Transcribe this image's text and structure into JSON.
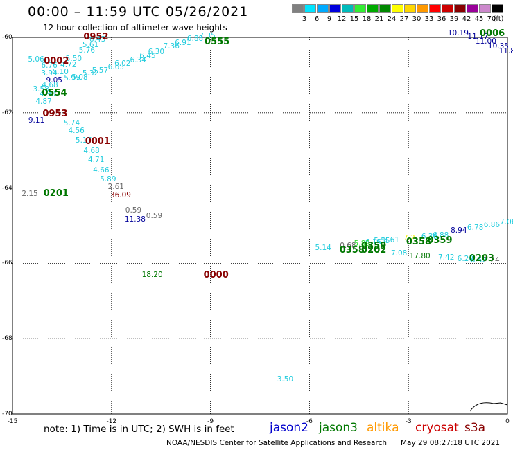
{
  "title": "00:00 – 11:59 UTC 05/26/2021",
  "subtitle": "12 hour collection of altimeter wave heights",
  "scale": {
    "unit": "(ft)",
    "colors": [
      "#808080",
      "#00e5ff",
      "#00aaff",
      "#0000dd",
      "#00bbbb",
      "#33ee33",
      "#00aa00",
      "#008800",
      "#ffff00",
      "#ffd700",
      "#ff9900",
      "#ff0000",
      "#cc0000",
      "#880000",
      "#990099",
      "#cc88cc",
      "#000000"
    ],
    "labels": [
      "3",
      "6",
      "9",
      "12",
      "15",
      "18",
      "21",
      "24",
      "27",
      "30",
      "33",
      "36",
      "39",
      "42",
      "45",
      "70"
    ]
  },
  "axes": {
    "x_ticks": [
      "-15",
      "-12",
      "-9",
      "-6",
      "-3",
      "0"
    ],
    "y_ticks": [
      "-60",
      "-62",
      "-64",
      "-66",
      "-68",
      "-70"
    ]
  },
  "note": "note: 1) Time is in UTC; 2) SWH is in feet",
  "satellites": [
    {
      "name": "jason2",
      "color": "#0000cc"
    },
    {
      "name": "jason3",
      "color": "#007700"
    },
    {
      "name": "altika",
      "color": "#ff9900"
    },
    {
      "name": "cryosat",
      "color": "#cc0000"
    },
    {
      "name": "s3a",
      "color": "#880000"
    }
  ],
  "credit": "NOAA/NESDIS Center for Satellite Applications and Research",
  "timestamp": "May 29 08:27:18 UTC 2021",
  "map_data": {
    "observations": [
      {
        "lon": -12.67,
        "lat": -60.07,
        "v": "6.43",
        "c": "#22ccdd"
      },
      {
        "lon": -12.88,
        "lat": -60.22,
        "v": "5.61",
        "c": "#22ccdd"
      },
      {
        "lon": -12.99,
        "lat": -60.37,
        "v": "5.76",
        "c": "#22ccdd"
      },
      {
        "lon": -14.53,
        "lat": -60.6,
        "v": "5.06",
        "c": "#22ccdd"
      },
      {
        "lon": -14.13,
        "lat": -60.77,
        "v": "6.76",
        "c": "#22ccdd"
      },
      {
        "lon": -13.39,
        "lat": -60.59,
        "v": "5.50",
        "c": "#22ccdd"
      },
      {
        "lon": -13.55,
        "lat": -60.76,
        "v": "4.72",
        "c": "#22ccdd"
      },
      {
        "lon": -13.79,
        "lat": -60.93,
        "v": "5.10",
        "c": "#22ccdd"
      },
      {
        "lon": -14.13,
        "lat": -60.97,
        "v": "3.94",
        "c": "#22ccdd"
      },
      {
        "lon": -13.21,
        "lat": -61.08,
        "v": "5.08",
        "c": "#22ccdd"
      },
      {
        "lon": -13.44,
        "lat": -61.1,
        "v": "5.95",
        "c": "#22ccdd"
      },
      {
        "lon": -13.98,
        "lat": -61.15,
        "v": "9.05",
        "c": "#000099"
      },
      {
        "lon": -12.88,
        "lat": -60.98,
        "v": "5.32",
        "c": "#22ccdd"
      },
      {
        "lon": -12.59,
        "lat": -60.9,
        "v": "5.57",
        "c": "#22ccdd"
      },
      {
        "lon": -12.11,
        "lat": -60.81,
        "v": "6.63",
        "c": "#22ccdd"
      },
      {
        "lon": -11.91,
        "lat": -60.72,
        "v": "6.02",
        "c": "#22ccdd"
      },
      {
        "lon": -11.44,
        "lat": -60.63,
        "v": "6.34",
        "c": "#22ccdd"
      },
      {
        "lon": -11.15,
        "lat": -60.52,
        "v": "6.45",
        "c": "#22ccdd"
      },
      {
        "lon": -10.89,
        "lat": -60.4,
        "v": "6.30",
        "c": "#22ccdd"
      },
      {
        "lon": -10.43,
        "lat": -60.26,
        "v": "7.36",
        "c": "#22ccdd"
      },
      {
        "lon": -10.08,
        "lat": -60.17,
        "v": "6.91",
        "c": "#22ccdd"
      },
      {
        "lon": -9.71,
        "lat": -60.06,
        "v": "6.88",
        "c": "#22ccdd"
      },
      {
        "lon": -9.34,
        "lat": -59.99,
        "v": "7.35",
        "c": "#22ccdd"
      },
      {
        "lon": -14.38,
        "lat": -61.39,
        "v": "3.58",
        "c": "#22ccdd"
      },
      {
        "lon": -14.11,
        "lat": -61.28,
        "v": "4.68",
        "c": "#22ccdd"
      },
      {
        "lon": -14.18,
        "lat": -61.53,
        "v": "4.90",
        "c": "#22ccdd"
      },
      {
        "lon": -14.3,
        "lat": -61.73,
        "v": "4.87",
        "c": "#22ccdd"
      },
      {
        "lon": -14.52,
        "lat": -62.23,
        "v": "9.11",
        "c": "#000099"
      },
      {
        "lon": -13.45,
        "lat": -62.29,
        "v": "5.74",
        "c": "#22ccdd"
      },
      {
        "lon": -13.31,
        "lat": -62.5,
        "v": "4.56",
        "c": "#22ccdd"
      },
      {
        "lon": -13.09,
        "lat": -62.76,
        "v": "5.17",
        "c": "#22ccdd"
      },
      {
        "lon": -12.85,
        "lat": -63.03,
        "v": "4.68",
        "c": "#22ccdd"
      },
      {
        "lon": -12.71,
        "lat": -63.28,
        "v": "4.71",
        "c": "#22ccdd"
      },
      {
        "lon": -12.56,
        "lat": -63.54,
        "v": "4.66",
        "c": "#22ccdd"
      },
      {
        "lon": -12.35,
        "lat": -63.79,
        "v": "5.89",
        "c": "#22ccdd"
      },
      {
        "lon": -12.11,
        "lat": -63.98,
        "v": "2.61",
        "c": "#666666"
      },
      {
        "lon": -14.72,
        "lat": -64.18,
        "v": "2.15",
        "c": "#666666"
      },
      {
        "lon": -12.04,
        "lat": -64.21,
        "v": "36.09",
        "c": "#880000"
      },
      {
        "lon": -11.58,
        "lat": -64.62,
        "v": "0.59",
        "c": "#666666"
      },
      {
        "lon": -11.6,
        "lat": -64.86,
        "v": "11.38",
        "c": "#000099"
      },
      {
        "lon": -10.95,
        "lat": -64.76,
        "v": "0.59",
        "c": "#666666"
      },
      {
        "lon": -11.08,
        "lat": -66.32,
        "v": "18.20",
        "c": "#007700"
      },
      {
        "lon": -6.98,
        "lat": -69.1,
        "v": "3.50",
        "c": "#22ccdd"
      },
      {
        "lon": -5.83,
        "lat": -65.61,
        "v": "5.14",
        "c": "#22ccdd"
      },
      {
        "lon": -5.08,
        "lat": -65.55,
        "v": "0.68",
        "c": "#666666"
      },
      {
        "lon": -3.53,
        "lat": -65.76,
        "v": "7.08",
        "c": "#22ccdd"
      },
      {
        "lon": -2.97,
        "lat": -65.82,
        "v": "17.80",
        "c": "#007700"
      },
      {
        "lon": -2.1,
        "lat": -65.86,
        "v": "7.42",
        "c": "#22ccdd"
      },
      {
        "lon": -1.52,
        "lat": -65.9,
        "v": "6.20",
        "c": "#22ccdd"
      },
      {
        "lon": -1.12,
        "lat": -65.93,
        "v": "6.52",
        "c": "#22ccdd"
      },
      {
        "lon": -0.73,
        "lat": -65.94,
        "v": "2.24",
        "c": "#666666"
      },
      {
        "lon": -3.77,
        "lat": -65.4,
        "v": "5.61",
        "c": "#22ccdd"
      },
      {
        "lon": -4.05,
        "lat": -65.43,
        "v": "5.55",
        "c": "#22ccdd"
      },
      {
        "lon": -4.31,
        "lat": -65.46,
        "v": "6.15",
        "c": "#22ccdd"
      },
      {
        "lon": -4.65,
        "lat": -65.49,
        "v": "5.89",
        "c": "#33dd33"
      },
      {
        "lon": -3.15,
        "lat": -65.35,
        "v": "7.2",
        "c": "#eeee00"
      },
      {
        "lon": -2.61,
        "lat": -65.32,
        "v": "6.36",
        "c": "#22ccdd"
      },
      {
        "lon": -2.27,
        "lat": -65.27,
        "v": "6.88",
        "c": "#22ccdd"
      },
      {
        "lon": -1.72,
        "lat": -65.14,
        "v": "8.94",
        "c": "#000099"
      },
      {
        "lon": -1.22,
        "lat": -65.08,
        "v": "6.78",
        "c": "#22ccdd"
      },
      {
        "lon": -0.72,
        "lat": -65.0,
        "v": "6.86",
        "c": "#22ccdd"
      },
      {
        "lon": -0.23,
        "lat": -64.92,
        "v": "7.06",
        "c": "#22ccdd"
      },
      {
        "lon": -1.81,
        "lat": -59.9,
        "v": "10.19",
        "c": "#000099"
      },
      {
        "lon": -1.21,
        "lat": -60.0,
        "v": "11.17",
        "c": "#000099"
      },
      {
        "lon": -0.97,
        "lat": -60.13,
        "v": "11.00",
        "c": "#000099"
      },
      {
        "lon": -0.59,
        "lat": -60.26,
        "v": "10.35",
        "c": "#000099"
      },
      {
        "lon": -0.26,
        "lat": -60.39,
        "v": "11.8",
        "c": "#000099"
      }
    ],
    "time_marks": [
      {
        "lon": -12.85,
        "lat": -60.0,
        "t": "0952",
        "c": "#880000"
      },
      {
        "lon": -9.18,
        "lat": -60.13,
        "t": "0555",
        "c": "#007700"
      },
      {
        "lon": -14.05,
        "lat": -60.64,
        "t": "0002",
        "c": "#880000"
      },
      {
        "lon": -14.11,
        "lat": -61.48,
        "t": "0554",
        "c": "#007700"
      },
      {
        "lon": -14.09,
        "lat": -62.04,
        "t": "0953",
        "c": "#880000"
      },
      {
        "lon": -12.8,
        "lat": -62.78,
        "t": "0001",
        "c": "#880000"
      },
      {
        "lon": -14.06,
        "lat": -64.16,
        "t": "0201",
        "c": "#007700"
      },
      {
        "lon": -9.21,
        "lat": -66.32,
        "t": "0000",
        "c": "#880000"
      },
      {
        "lon": -5.09,
        "lat": -65.66,
        "t": "0358",
        "c": "#007700"
      },
      {
        "lon": -4.43,
        "lat": -65.66,
        "t": "0202",
        "c": "#007700"
      },
      {
        "lon": -4.43,
        "lat": -65.55,
        "t": "0359",
        "c": "#007700"
      },
      {
        "lon": -3.07,
        "lat": -65.45,
        "t": "0358",
        "c": "#007700"
      },
      {
        "lon": -2.43,
        "lat": -65.4,
        "t": "0359",
        "c": "#007700"
      },
      {
        "lon": -1.16,
        "lat": -65.89,
        "t": "0203",
        "c": "#007700"
      },
      {
        "lon": -0.84,
        "lat": -59.91,
        "t": "0006",
        "c": "#007700"
      }
    ]
  }
}
